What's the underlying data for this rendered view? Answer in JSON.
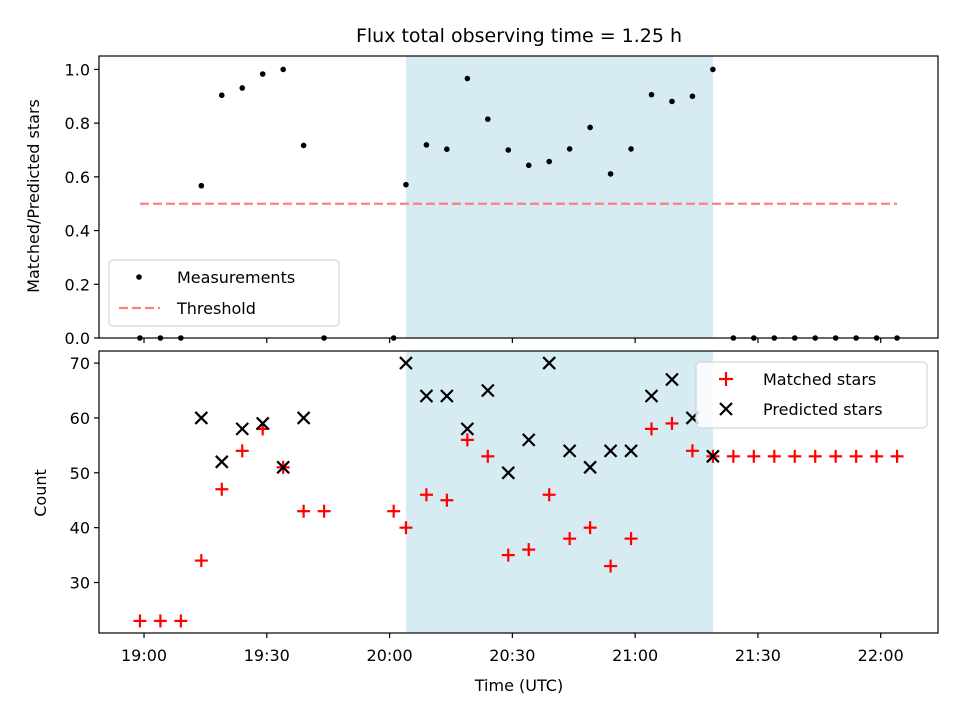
{
  "chart_data": [
    {
      "type": "scatter",
      "title": "Flux total observing time = 1.25 h",
      "xlabel": "",
      "ylabel": "Matched/Predicted stars",
      "ylim": [
        0,
        1.05
      ],
      "yticks": [
        "0.0",
        "0.2",
        "0.4",
        "0.6",
        "0.8",
        "1.0"
      ],
      "ytick_values": [
        0,
        0.2,
        0.4,
        0.6,
        0.8,
        1.0
      ],
      "highlight_span": {
        "start": "20:04",
        "end": "21:19",
        "color": "#add8e6"
      },
      "legend": {
        "position": "lower-left",
        "entries": [
          "Measurements",
          "Threshold"
        ]
      },
      "series": [
        {
          "name": "Measurements",
          "marker": "dot",
          "color": "#000000",
          "x": [
            "18:59",
            "19:04",
            "19:09",
            "19:14",
            "19:19",
            "19:24",
            "19:29",
            "19:34",
            "19:44",
            "20:01",
            "20:04",
            "20:09",
            "20:14",
            "20:19",
            "20:24",
            "20:29",
            "20:34",
            "20:39",
            "20:44",
            "20:49",
            "20:54",
            "20:59",
            "21:04",
            "21:09",
            "21:14",
            "21:19",
            "21:24",
            "21:29",
            "21:34",
            "21:39",
            "21:44",
            "21:49",
            "21:54",
            "21:59",
            "22:04"
          ],
          "y": [
            0,
            0,
            0,
            0.567,
            0.904,
            0.931,
            0.983,
            1.0,
            0,
            0,
            0.571,
            0.719,
            0.703,
            0.966,
            0.815,
            0.7,
            0.643,
            0.657,
            0.704,
            0.784,
            0.611,
            0.704,
            0.906,
            0.881,
            0.9,
            1.0,
            0,
            0,
            0,
            0,
            0,
            0,
            0,
            0,
            0
          ]
        },
        {
          "name": "Measurements",
          "marker": "dot",
          "color": "#000000",
          "x": [
            "19:39"
          ],
          "y": [
            0.717
          ]
        },
        {
          "name": "Threshold",
          "style": "dashed",
          "color": "#ff7f7f",
          "x": [
            "18:59",
            "22:04"
          ],
          "y": [
            0.5,
            0.5
          ]
        }
      ]
    },
    {
      "type": "scatter",
      "xlabel": "Time (UTC)",
      "ylabel": "Count",
      "ylim": [
        20.8,
        72.2
      ],
      "yticks": [
        "30",
        "40",
        "50",
        "60",
        "70"
      ],
      "ytick_values": [
        30,
        40,
        50,
        60,
        70
      ],
      "xticks": [
        "19:00",
        "19:30",
        "20:00",
        "20:30",
        "21:00",
        "21:30",
        "22:00"
      ],
      "xlim": [
        "18:49",
        "22:14"
      ],
      "highlight_span": {
        "start": "20:04",
        "end": "21:19",
        "color": "#add8e6"
      },
      "legend": {
        "position": "upper-right",
        "entries": [
          "Matched stars",
          "Predicted stars"
        ]
      },
      "series": [
        {
          "name": "Matched stars",
          "marker": "plus",
          "color": "#ff0000",
          "x": [
            "18:59",
            "19:04",
            "19:09",
            "19:14",
            "19:19",
            "19:24",
            "19:29",
            "19:34",
            "19:39",
            "19:44",
            "20:01",
            "20:04",
            "20:09",
            "20:14",
            "20:19",
            "20:24",
            "20:29",
            "20:34",
            "20:39",
            "20:44",
            "20:49",
            "20:54",
            "20:59",
            "21:04",
            "21:09",
            "21:14",
            "21:19",
            "21:24",
            "21:29",
            "21:34",
            "21:39",
            "21:44",
            "21:49",
            "21:54",
            "21:59",
            "22:04"
          ],
          "y": [
            23,
            23,
            23,
            34,
            47,
            54,
            58,
            51,
            43,
            43,
            43,
            40,
            46,
            45,
            56,
            53,
            35,
            36,
            46,
            38,
            40,
            33,
            38,
            58,
            59,
            54,
            53,
            53,
            53,
            53,
            53,
            53,
            53,
            53,
            53,
            53
          ]
        },
        {
          "name": "Predicted stars",
          "marker": "x",
          "color": "#000000",
          "x": [
            "19:14",
            "19:19",
            "19:24",
            "19:29",
            "19:34",
            "19:39",
            "20:04",
            "20:09",
            "20:14",
            "20:19",
            "20:24",
            "20:29",
            "20:34",
            "20:39",
            "20:44",
            "20:49",
            "20:54",
            "20:59",
            "21:04",
            "21:09",
            "21:14",
            "21:19"
          ],
          "y": [
            60,
            52,
            58,
            59,
            51,
            60,
            70,
            64,
            64,
            58,
            65,
            50,
            56,
            70,
            54,
            51,
            54,
            54,
            64,
            67,
            60,
            53
          ]
        }
      ]
    }
  ]
}
